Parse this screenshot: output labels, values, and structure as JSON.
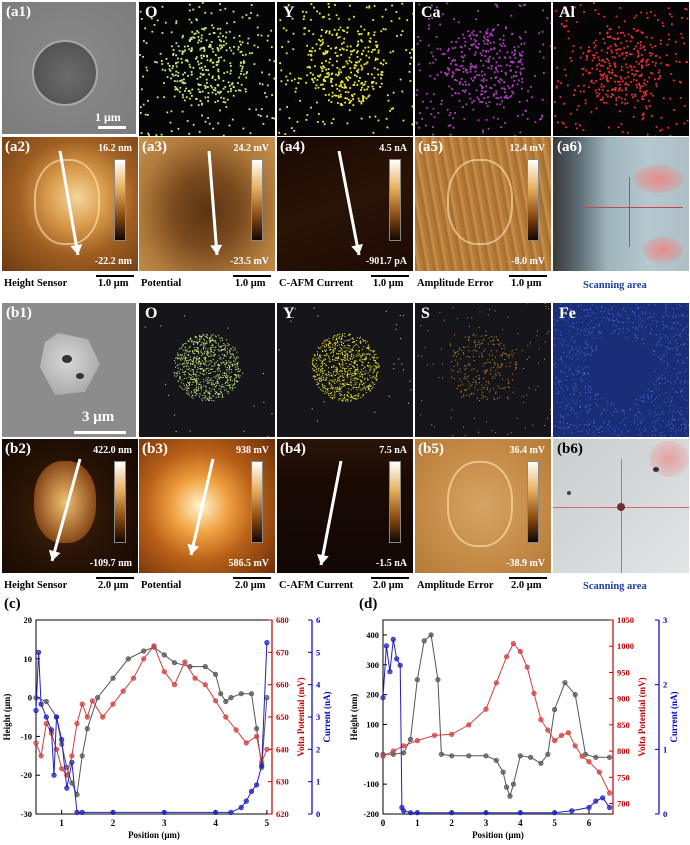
{
  "row_a1": {
    "panel_label": "(a1)",
    "scale": "1 μm",
    "maps": [
      {
        "label": "O",
        "color": "#c8f080"
      },
      {
        "label": "Y",
        "color": "#f0ee3a"
      },
      {
        "label": "Ca",
        "color": "#b040c0"
      },
      {
        "label": "Al",
        "color": "#f03030"
      }
    ]
  },
  "row_a2": {
    "panels": [
      {
        "label": "(a2)",
        "top": "16.2 nm",
        "bottom": "-22.2 nm",
        "caption": "Height Sensor",
        "scale": "1.0 μm"
      },
      {
        "label": "(a3)",
        "top": "24.2 mV",
        "bottom": "-23.5 mV",
        "caption": "Potential",
        "scale": "1.0 μm"
      },
      {
        "label": "(a4)",
        "top": "4.5 nA",
        "bottom": "-901.7 pA",
        "caption": "C-AFM Current",
        "scale": "1.0 μm"
      },
      {
        "label": "(a5)",
        "top": "12.4 mV",
        "bottom": "-8.0 mV",
        "caption": "Amplitude Error",
        "scale": "1.0 μm"
      }
    ],
    "a6": {
      "label": "(a6)",
      "caption": "Scanning area"
    }
  },
  "row_b1": {
    "panel_label": "(b1)",
    "scale": "3 μm",
    "maps": [
      {
        "label": "O",
        "color": "#c8f080"
      },
      {
        "label": "Y",
        "color": "#f0ee3a"
      },
      {
        "label": "S",
        "color": "#d09030"
      },
      {
        "label": "Fe",
        "color": "#3050d0"
      }
    ]
  },
  "row_b2": {
    "panels": [
      {
        "label": "(b2)",
        "top": "422.0 nm",
        "bottom": "-109.7 nm",
        "caption": "Height Sensor",
        "scale": "2.0 μm"
      },
      {
        "label": "(b3)",
        "top": "938 mV",
        "bottom": "586.5 mV",
        "caption": "Potential",
        "scale": "2.0 μm"
      },
      {
        "label": "(b4)",
        "top": "7.5 nA",
        "bottom": "-1.5 nA",
        "caption": "C-AFM Current",
        "scale": "2.0 μm"
      },
      {
        "label": "(b5)",
        "top": "36.4 mV",
        "bottom": "-38.9 mV",
        "caption": "Amplitude Error",
        "scale": "2.0 μm"
      }
    ],
    "b6": {
      "label": "(b6)",
      "caption": "Scanning area"
    }
  },
  "chart_data": [
    {
      "panel_label": "(c)",
      "type": "line",
      "xlabel": "Position (μm)",
      "ylabels": [
        "Height (μm)",
        "Volta Potential (mV)",
        "Current (nA)"
      ],
      "xlim": [
        0.5,
        5.1
      ],
      "xticks": [
        "1",
        "2",
        "3",
        "4",
        "5"
      ],
      "axes": {
        "left": {
          "ylim": [
            -30,
            20
          ],
          "ticks": [
            "-30",
            "-20",
            "-10",
            "0",
            "10",
            "20"
          ],
          "color": "#000000"
        },
        "right1": {
          "ylim": [
            620,
            680
          ],
          "ticks": [
            "620",
            "630",
            "640",
            "650",
            "660",
            "670",
            "680"
          ],
          "color": "#c00000"
        },
        "right2": {
          "ylim": [
            0,
            6
          ],
          "ticks": [
            "0",
            "1",
            "2",
            "3",
            "4",
            "5",
            "6"
          ],
          "color": "#0000c0"
        }
      },
      "series": [
        {
          "axis": "left",
          "color": "#555555",
          "x": [
            0.5,
            0.7,
            0.9,
            1.0,
            1.1,
            1.2,
            1.3,
            1.4,
            1.5,
            1.7,
            2.0,
            2.3,
            2.6,
            2.8,
            3.0,
            3.2,
            3.5,
            3.8,
            4.0,
            4.1,
            4.2,
            4.3,
            4.5,
            4.7,
            4.8,
            4.9,
            5.0
          ],
          "y": [
            0,
            -1,
            -5,
            -12,
            -18,
            -22,
            -25,
            -15,
            -8,
            0,
            5,
            10,
            12,
            13,
            11,
            9,
            8,
            8,
            6,
            1,
            -1,
            0,
            1,
            1,
            -8,
            -18,
            0
          ]
        },
        {
          "axis": "right1",
          "color": "#d04040",
          "x": [
            0.5,
            0.6,
            0.7,
            0.8,
            0.9,
            1.0,
            1.1,
            1.2,
            1.3,
            1.4,
            1.5,
            1.6,
            1.8,
            2.0,
            2.2,
            2.4,
            2.6,
            2.8,
            3.0,
            3.2,
            3.4,
            3.6,
            3.8,
            4.0,
            4.2,
            4.4,
            4.6,
            4.8,
            4.9,
            5.0
          ],
          "y": [
            642,
            638,
            648,
            645,
            640,
            634,
            632,
            638,
            648,
            654,
            650,
            655,
            650,
            654,
            658,
            662,
            668,
            672,
            664,
            660,
            667,
            662,
            660,
            655,
            650,
            646,
            642,
            644,
            636,
            640
          ]
        },
        {
          "axis": "right2",
          "color": "#2020c0",
          "x": [
            0.5,
            0.55,
            0.6,
            0.7,
            0.8,
            0.85,
            0.9,
            1.0,
            1.1,
            1.2,
            1.3,
            1.4,
            2.0,
            3.0,
            4.0,
            4.3,
            4.5,
            4.6,
            4.7,
            4.8,
            4.9,
            5.0
          ],
          "y": [
            3.2,
            5.0,
            3.4,
            3.0,
            2.6,
            1.2,
            3.0,
            2.3,
            0.8,
            1.6,
            0.05,
            0.05,
            0.05,
            0.05,
            0.05,
            0.05,
            0.2,
            0.4,
            0.7,
            0.9,
            1.5,
            5.3
          ]
        }
      ]
    },
    {
      "panel_label": "(d)",
      "type": "line",
      "xlabel": "Position (μm)",
      "ylabels": [
        "Height (nm)",
        "Volta Potential (mV)",
        "Current (nA)"
      ],
      "xlim": [
        0,
        6.7
      ],
      "xticks": [
        "0",
        "1",
        "2",
        "3",
        "4",
        "5",
        "6"
      ],
      "axes": {
        "left": {
          "ylim": [
            -200,
            450
          ],
          "ticks": [
            "-200",
            "-100",
            "0",
            "100",
            "200",
            "300",
            "400"
          ],
          "color": "#000000"
        },
        "right1": {
          "ylim": [
            680,
            1050
          ],
          "ticks": [
            "700",
            "750",
            "800",
            "850",
            "900",
            "950",
            "1000",
            "1050"
          ],
          "color": "#c00000"
        },
        "right2": {
          "ylim": [
            0,
            3
          ],
          "ticks": [
            "0",
            "1",
            "2",
            "3"
          ],
          "color": "#0000c0"
        }
      },
      "series": [
        {
          "axis": "left",
          "color": "#555555",
          "x": [
            0,
            0.3,
            0.6,
            0.8,
            1.0,
            1.2,
            1.4,
            1.6,
            1.7,
            2.0,
            2.5,
            3.0,
            3.3,
            3.5,
            3.6,
            3.7,
            3.8,
            4.0,
            4.3,
            4.6,
            4.8,
            5.0,
            5.3,
            5.6,
            5.9,
            6.2,
            6.6
          ],
          "y": [
            0,
            0,
            5,
            50,
            250,
            380,
            400,
            250,
            0,
            -5,
            -5,
            -5,
            -20,
            -60,
            -110,
            -140,
            -100,
            -5,
            -10,
            -30,
            0,
            150,
            240,
            200,
            0,
            -10,
            -10
          ]
        },
        {
          "axis": "right1",
          "color": "#d04040",
          "x": [
            0,
            0.3,
            0.6,
            1.0,
            1.5,
            2.0,
            2.5,
            3.0,
            3.3,
            3.6,
            3.8,
            4.0,
            4.2,
            4.4,
            4.6,
            4.8,
            5.0,
            5.2,
            5.4,
            5.6,
            5.8,
            6.0,
            6.3,
            6.6
          ],
          "y": [
            790,
            800,
            810,
            820,
            830,
            832,
            850,
            880,
            930,
            980,
            1005,
            990,
            960,
            910,
            860,
            840,
            820,
            830,
            835,
            810,
            790,
            780,
            760,
            720
          ]
        },
        {
          "axis": "right2",
          "color": "#2020c0",
          "x": [
            0,
            0.1,
            0.2,
            0.3,
            0.4,
            0.5,
            0.55,
            0.6,
            0.8,
            1.0,
            2.0,
            3.0,
            4.0,
            5.0,
            5.5,
            6.0,
            6.2,
            6.4,
            6.6
          ],
          "y": [
            1.8,
            2.6,
            2.2,
            2.7,
            2.4,
            2.3,
            0.1,
            0.05,
            0.02,
            0.02,
            0.02,
            0.02,
            0.02,
            0.02,
            0.05,
            0.1,
            0.2,
            0.25,
            0.1
          ]
        }
      ]
    }
  ]
}
